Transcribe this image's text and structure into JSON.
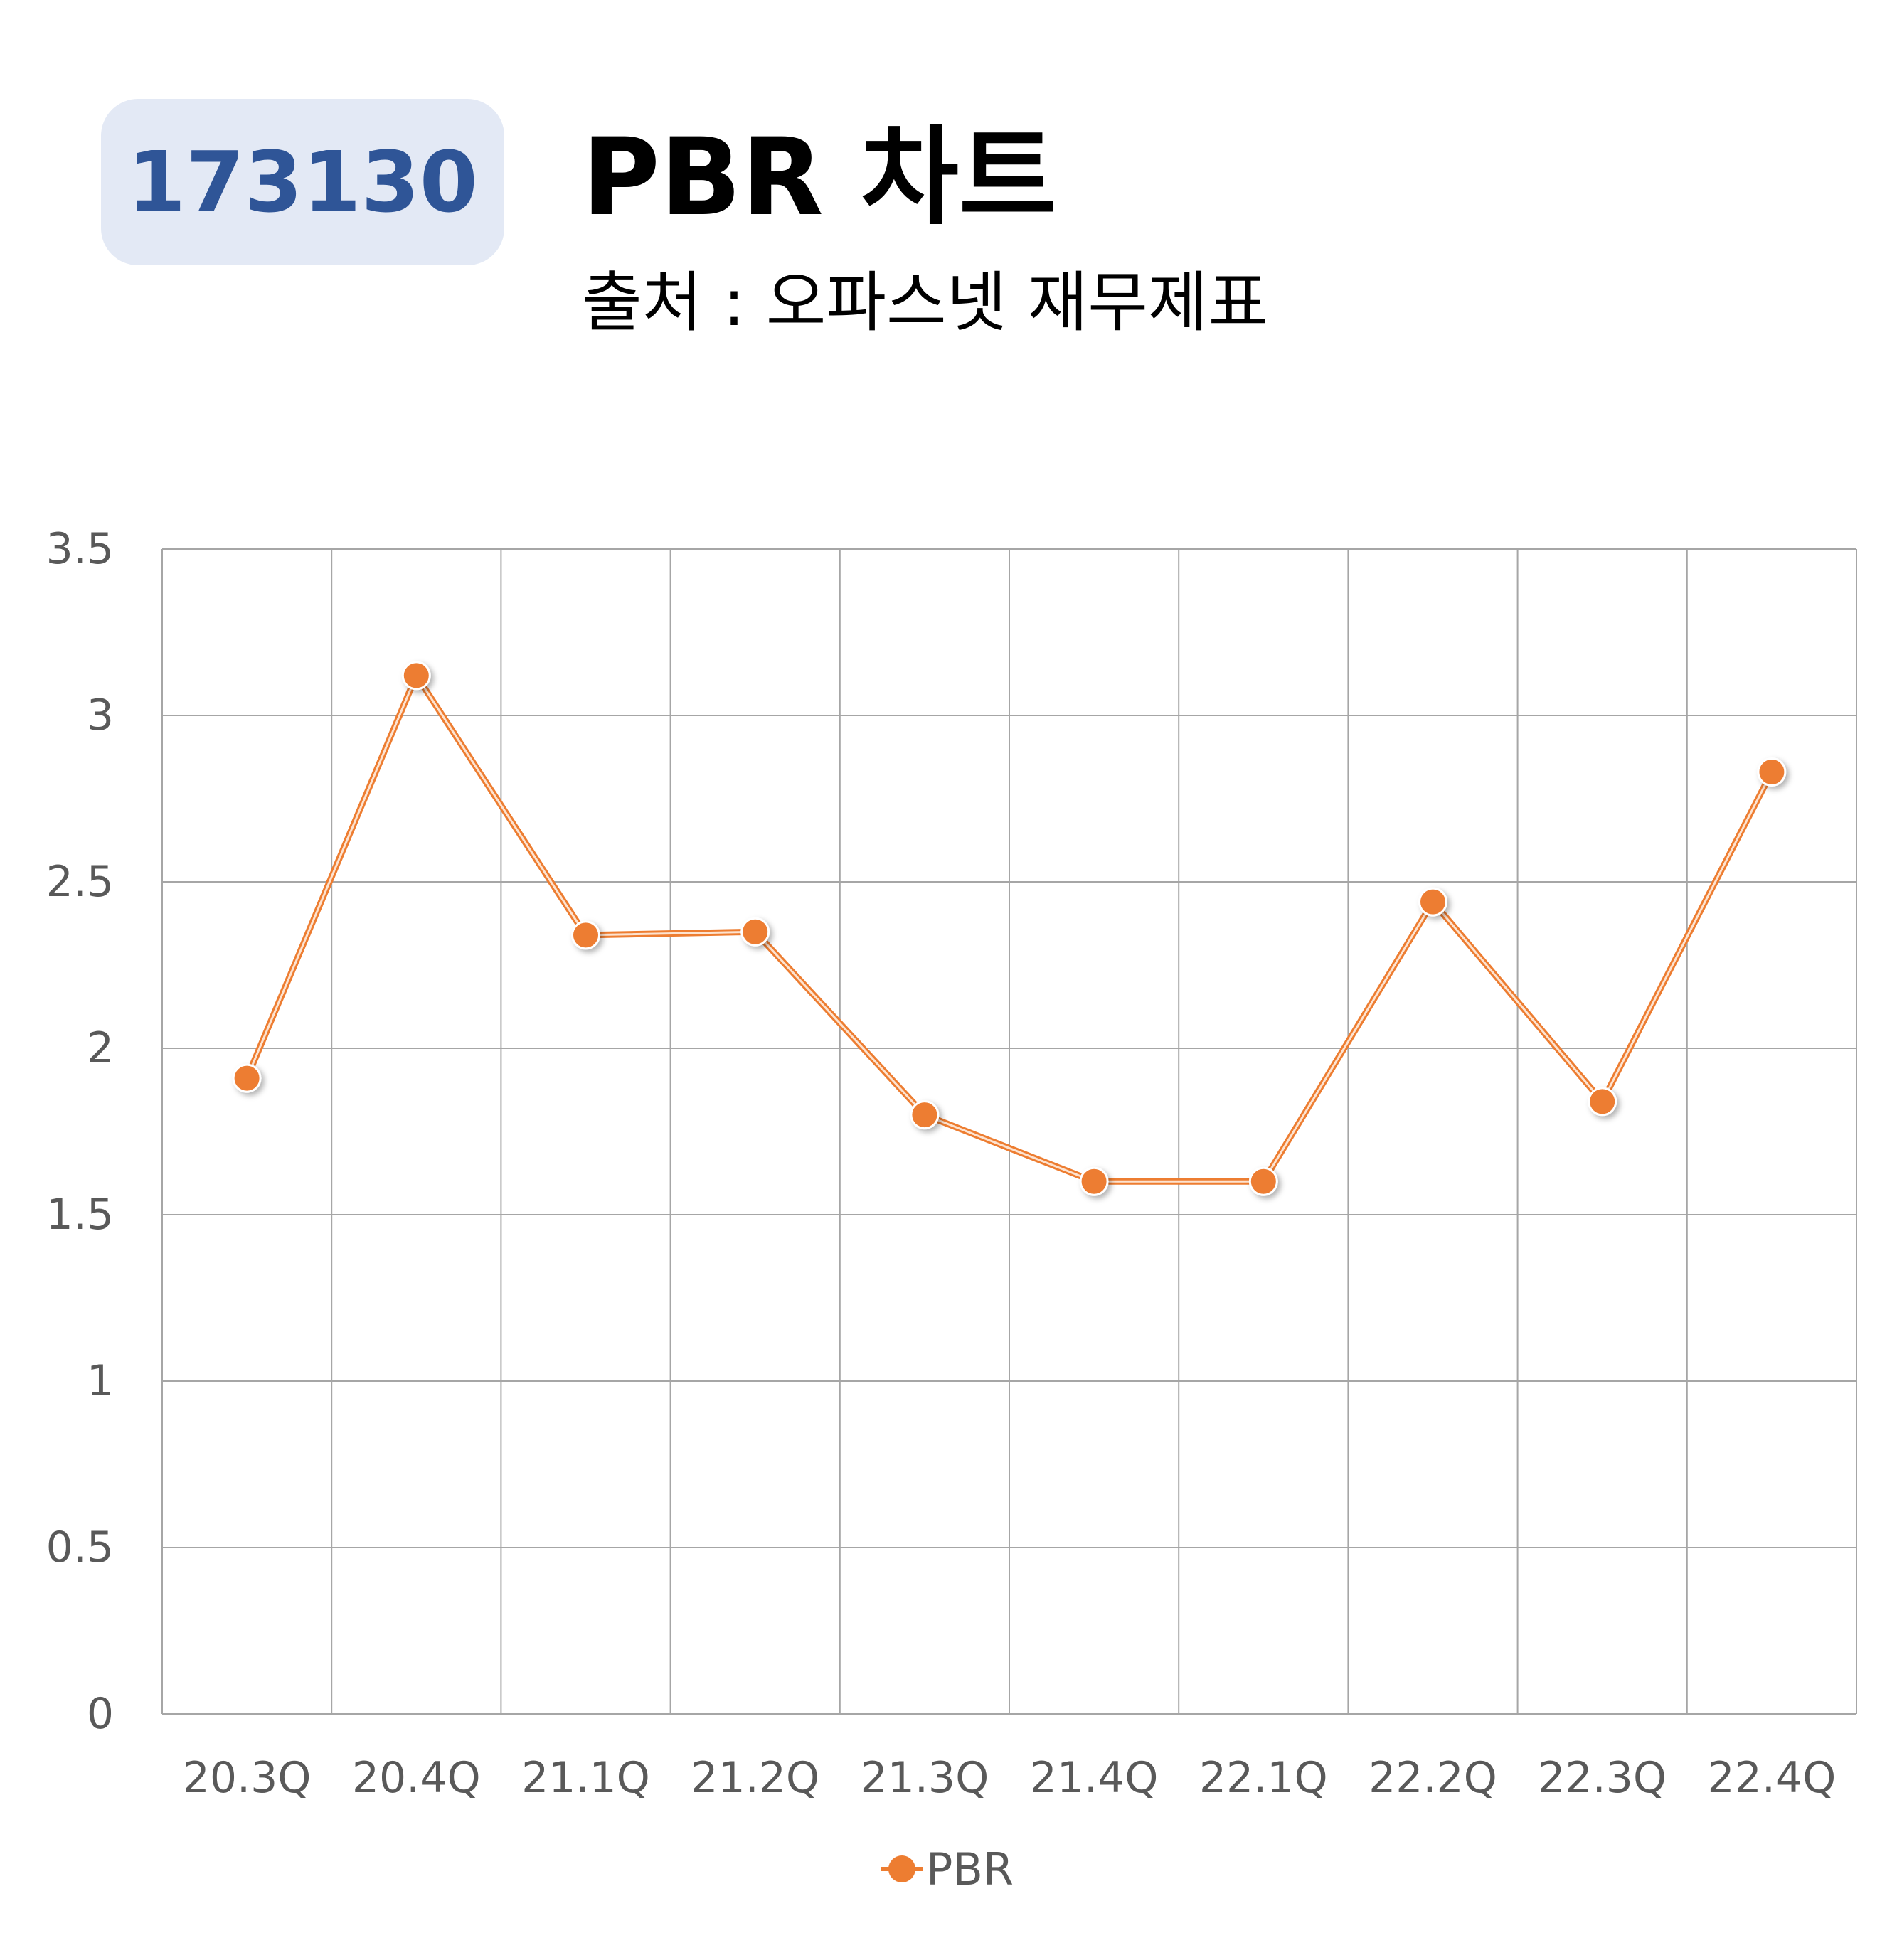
{
  "header": {
    "code": "173130",
    "title": "PBR 차트",
    "source": "출처 : 오파스넷 재무제표"
  },
  "colors": {
    "series": "#ed7d31",
    "badge_bg": "#e3e9f5",
    "badge_text": "#2f5597",
    "grid": "#a6a6a6",
    "axis_text": "#595959"
  },
  "chart_data": {
    "type": "line",
    "title": "",
    "xlabel": "",
    "ylabel": "",
    "categories": [
      "20.3Q",
      "20.4Q",
      "21.1Q",
      "21.2Q",
      "21.3Q",
      "21.4Q",
      "22.1Q",
      "22.2Q",
      "22.3Q",
      "22.4Q"
    ],
    "series": [
      {
        "name": "PBR",
        "values": [
          1.91,
          3.12,
          2.34,
          2.35,
          1.8,
          1.6,
          1.6,
          2.44,
          1.84,
          2.83
        ]
      }
    ],
    "ylim": [
      0,
      3.5
    ],
    "yticks": [
      "0",
      "0.5",
      "1",
      "1.5",
      "2",
      "2.5",
      "3",
      "3.5"
    ],
    "grid": true,
    "legend": "bottom"
  }
}
